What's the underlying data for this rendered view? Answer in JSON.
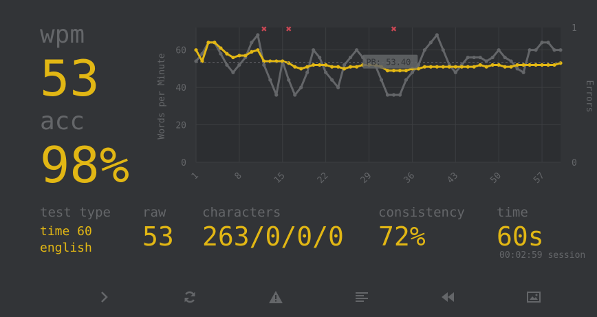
{
  "stats": {
    "wpm_label": "wpm",
    "wpm_value": "53",
    "acc_label": "acc",
    "acc_value": "98%"
  },
  "details": {
    "test_type_label": "test type",
    "test_type_mode": "time 60",
    "test_type_lang": "english",
    "raw_label": "raw",
    "raw_value": "53",
    "characters_label": "characters",
    "characters_value": "263/0/0/0",
    "consistency_label": "consistency",
    "consistency_value": "72%",
    "time_label": "time",
    "time_value": "60s",
    "session_time": "00:02:59 session"
  },
  "colors": {
    "background": "#323437",
    "accent": "#e2b714",
    "sub": "#646669",
    "error": "#ca4754"
  },
  "chart_data": {
    "type": "line",
    "ylabel": "Words per Minute",
    "y2label": "Errors",
    "ylim": [
      0,
      72
    ],
    "y2lim": [
      0,
      1
    ],
    "yticks": [
      "0",
      "20",
      "40",
      "60"
    ],
    "y2ticks": [
      "0",
      "1"
    ],
    "xticks": [
      "1",
      "8",
      "15",
      "22",
      "29",
      "36",
      "43",
      "50",
      "57"
    ],
    "x": [
      1,
      2,
      3,
      4,
      5,
      6,
      7,
      8,
      9,
      10,
      11,
      12,
      13,
      14,
      15,
      16,
      17,
      18,
      19,
      20,
      21,
      22,
      23,
      24,
      25,
      26,
      27,
      28,
      29,
      30,
      31,
      32,
      33,
      34,
      35,
      36,
      37,
      38,
      39,
      40,
      41,
      42,
      43,
      44,
      45,
      46,
      47,
      48,
      49,
      50,
      51,
      52,
      53,
      54,
      55,
      56,
      57,
      58,
      59,
      60
    ],
    "series": [
      {
        "name": "wpm",
        "color": "#e2b714",
        "values": [
          60,
          54,
          64,
          64,
          61,
          58,
          56,
          57,
          57,
          59,
          60,
          54,
          54,
          54,
          54,
          53,
          51,
          50,
          51,
          52,
          52,
          52,
          51,
          51,
          50,
          51,
          51,
          52,
          52,
          52,
          51,
          49,
          49,
          49,
          49,
          50,
          50,
          51,
          51,
          51,
          51,
          51,
          51,
          51,
          51,
          51,
          52,
          51,
          52,
          52,
          51,
          51,
          52,
          52,
          52,
          52,
          52,
          52,
          52,
          53
        ]
      },
      {
        "name": "raw",
        "color": "#646669",
        "values": [
          54,
          58,
          64,
          64,
          58,
          52,
          48,
          52,
          56,
          64,
          68,
          52,
          44,
          36,
          54,
          44,
          36,
          40,
          48,
          60,
          56,
          48,
          44,
          40,
          52,
          56,
          60,
          56,
          52,
          52,
          44,
          36,
          36,
          36,
          44,
          48,
          52,
          60,
          64,
          68,
          60,
          52,
          48,
          52,
          56,
          56,
          56,
          54,
          56,
          60,
          56,
          54,
          50,
          48,
          60,
          60,
          64,
          64,
          60,
          60
        ]
      }
    ],
    "errors_at": [
      12,
      16,
      33
    ],
    "annotation": "PB: 53.40",
    "annotation_value": 53.4
  },
  "footer": {
    "icons": [
      "next-test-icon",
      "restart-icon",
      "report-icon",
      "words-history-icon",
      "replay-icon",
      "screenshot-icon"
    ]
  }
}
